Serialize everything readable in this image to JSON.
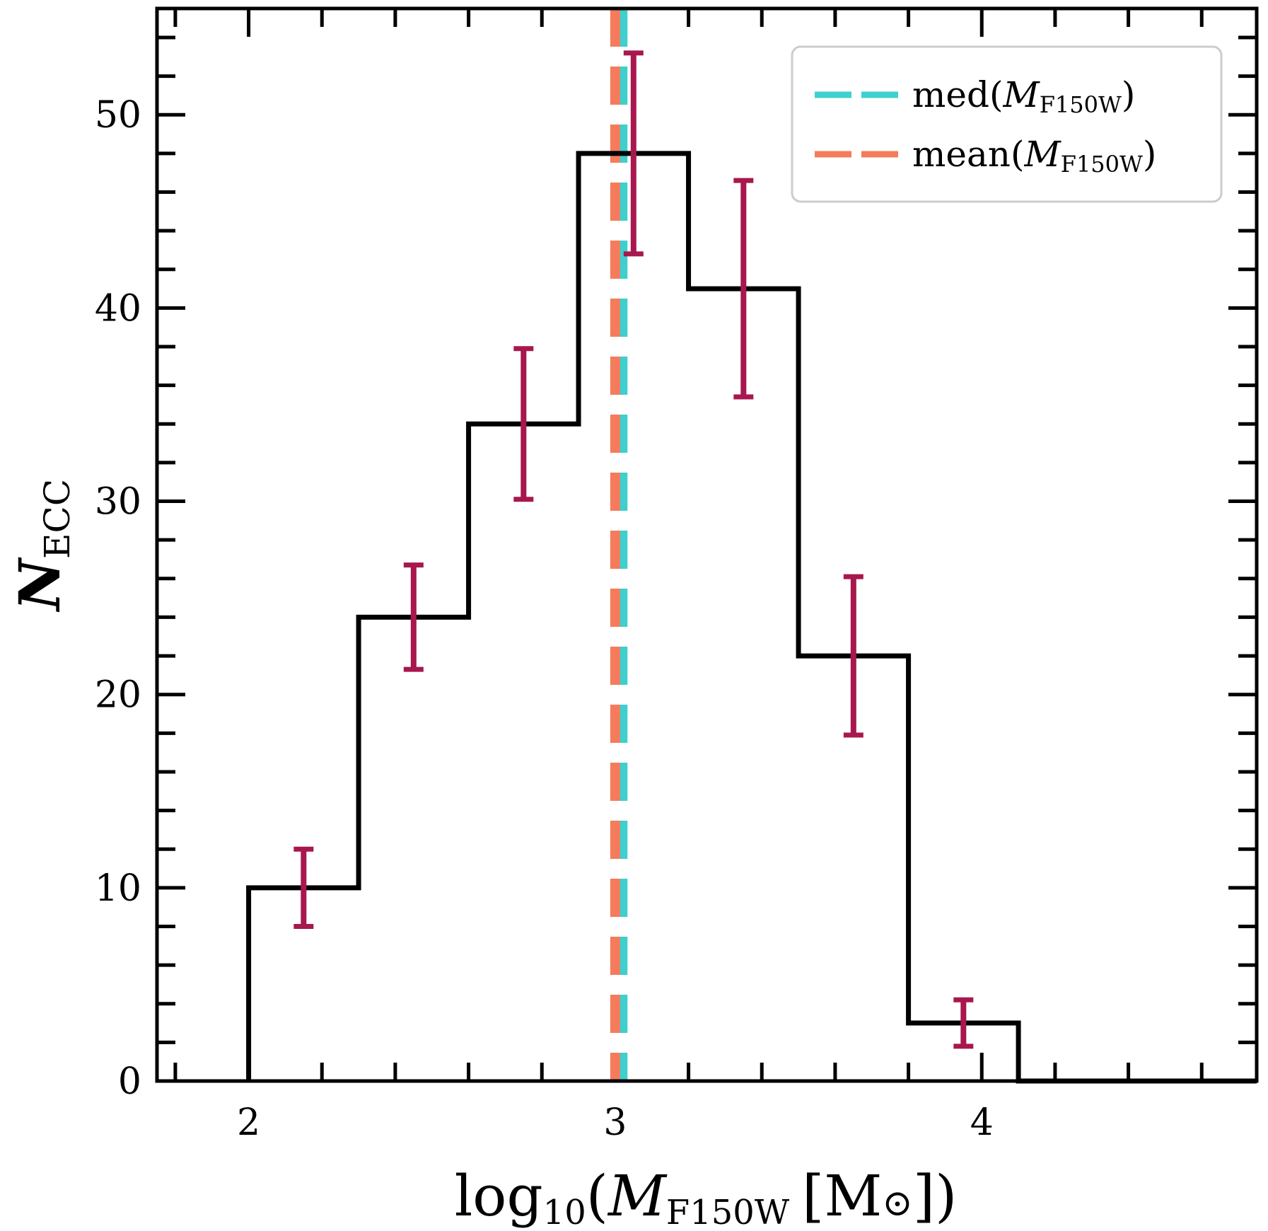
{
  "chart_data": {
    "type": "histogram",
    "title": "",
    "xlabel": {
      "prefix": "log",
      "sub": "10",
      "open": "(",
      "var": "M",
      "var_sub": "F150W",
      "unit": "[M",
      "sun": "⊙",
      "close": "])"
    },
    "ylabel": {
      "var": "N",
      "sub": "ECC"
    },
    "xlim": [
      1.75,
      4.75
    ],
    "ylim": [
      0,
      55.5
    ],
    "x_ticks": [
      2,
      3,
      4
    ],
    "y_ticks": [
      0,
      10,
      20,
      30,
      40,
      50
    ],
    "bins": [
      {
        "left": 2.0,
        "right": 2.3,
        "count": 10,
        "center": 2.15,
        "err_low": 8,
        "err_high": 12
      },
      {
        "left": 2.3,
        "right": 2.6,
        "count": 24,
        "center": 2.45,
        "err_low": 21.3,
        "err_high": 26.7
      },
      {
        "left": 2.6,
        "right": 2.9,
        "count": 34,
        "center": 2.75,
        "err_low": 30.1,
        "err_high": 37.9
      },
      {
        "left": 2.9,
        "right": 3.2,
        "count": 48,
        "center": 3.05,
        "err_low": 42.8,
        "err_high": 53.2
      },
      {
        "left": 3.2,
        "right": 3.5,
        "count": 41,
        "center": 3.35,
        "err_low": 35.4,
        "err_high": 46.6
      },
      {
        "left": 3.5,
        "right": 3.8,
        "count": 22,
        "center": 3.65,
        "err_low": 17.9,
        "err_high": 26.1
      },
      {
        "left": 3.8,
        "right": 4.1,
        "count": 3,
        "center": 3.95,
        "err_low": 1.8,
        "err_high": 4.2
      },
      {
        "left": 4.1,
        "right": 4.75,
        "count": 0
      }
    ],
    "vlines": [
      {
        "name": "median",
        "x": 3.02,
        "color": "#3ecfcf"
      },
      {
        "name": "mean",
        "x": 3.0,
        "color": "#f47c5c"
      }
    ],
    "legend": {
      "location": "top-right",
      "entries": [
        {
          "label": "med(",
          "var": "M",
          "sub": "F150W",
          "close": ")",
          "color": "#3ecfcf"
        },
        {
          "label": "mean(",
          "var": "M",
          "sub": "F150W",
          "close": ")",
          "color": "#f47c5c"
        }
      ]
    },
    "errorbar_color": "#a8174e",
    "histogram_color": "#000000"
  }
}
